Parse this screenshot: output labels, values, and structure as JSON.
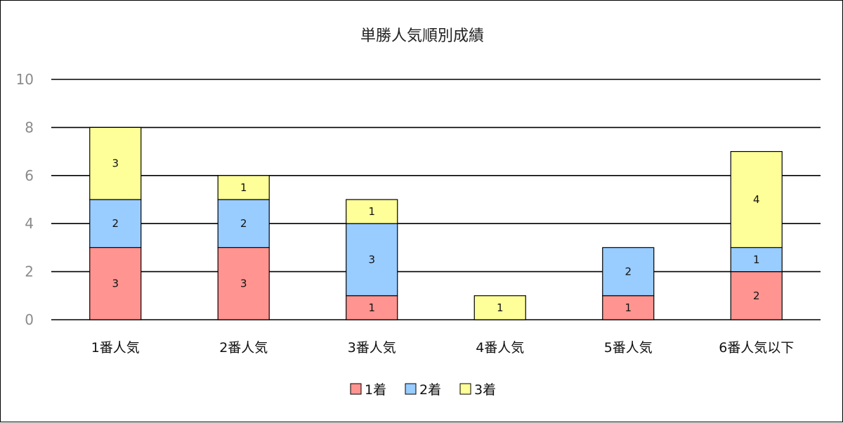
{
  "chart_data": {
    "type": "bar",
    "stacked": true,
    "title": "単勝人気順別成績",
    "categories": [
      "1番人気",
      "2番人気",
      "3番人気",
      "4番人気",
      "5番人気",
      "6番人気以下"
    ],
    "series": [
      {
        "name": "1着",
        "values": [
          3,
          3,
          1,
          0,
          1,
          2
        ],
        "color": "#FF9490"
      },
      {
        "name": "2着",
        "values": [
          2,
          2,
          3,
          0,
          2,
          1
        ],
        "color": "#99CCFF"
      },
      {
        "name": "3着",
        "values": [
          3,
          1,
          1,
          1,
          0,
          4
        ],
        "color": "#FFFF99"
      }
    ],
    "ylim": [
      0,
      10
    ],
    "yticks": [
      0,
      2,
      4,
      6,
      8,
      10
    ],
    "grid": true,
    "legend_position": "bottom"
  }
}
